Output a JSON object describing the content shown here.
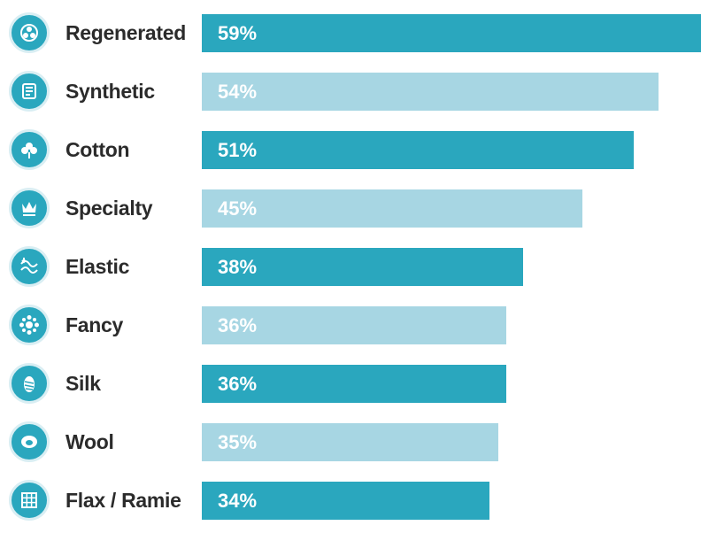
{
  "colors": {
    "dark_bar": "#2aa7be",
    "light_bar": "#a7d6e3",
    "label_text": "#2b2b2b",
    "value_text": "#ffffff"
  },
  "chart_data": {
    "type": "bar",
    "orientation": "horizontal",
    "title": "",
    "xlabel": "",
    "ylabel": "",
    "xlim": [
      0,
      59
    ],
    "grid": false,
    "categories": [
      "Regenerated",
      "Synthetic",
      "Cotton",
      "Specialty",
      "Elastic",
      "Fancy",
      "Silk",
      "Wool",
      "Flax / Ramie"
    ],
    "values": [
      59,
      54,
      51,
      45,
      38,
      36,
      36,
      35,
      34
    ],
    "value_labels": [
      "59%",
      "54%",
      "51%",
      "45%",
      "38%",
      "36%",
      "36%",
      "35%",
      "34%"
    ],
    "icons": [
      "regenerated-icon",
      "synthetic-icon",
      "cotton-icon",
      "specialty-icon",
      "elastic-icon",
      "fancy-icon",
      "silk-icon",
      "wool-icon",
      "flax-ramie-icon"
    ],
    "bar_styles": [
      "dark",
      "light",
      "dark",
      "light",
      "dark",
      "light",
      "dark",
      "light",
      "dark"
    ]
  }
}
